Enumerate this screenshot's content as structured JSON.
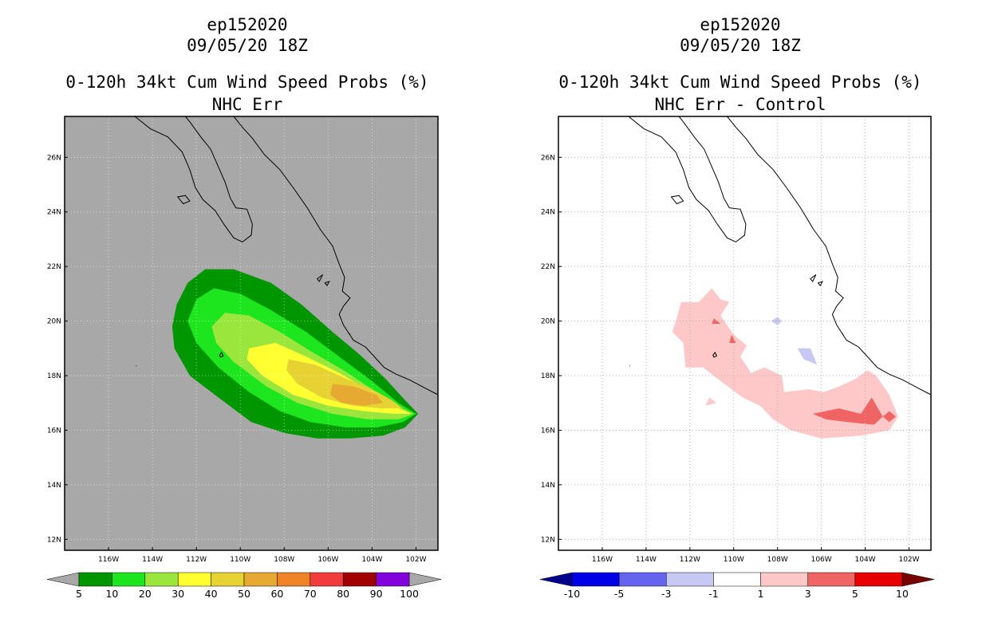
{
  "chart_data": [
    {
      "type": "heatmap",
      "storm_id": "ep152020",
      "datetime": "09/05/20 18Z",
      "title": "0-120h 34kt Cum Wind Speed Probs (%)",
      "subtitle": "NHC Err",
      "x_ticks": [
        "116W",
        "114W",
        "112W",
        "110W",
        "108W",
        "106W",
        "104W",
        "102W"
      ],
      "y_ticks": [
        "12N",
        "14N",
        "16N",
        "18N",
        "20N",
        "22N",
        "24N",
        "26N"
      ],
      "xlim_lon": [
        -118.0,
        -101.0
      ],
      "ylim_lat": [
        11.6,
        27.5
      ],
      "background": "#a8a8a8",
      "levels": [
        "5",
        "10",
        "20",
        "30",
        "40",
        "50",
        "60",
        "70",
        "80",
        "90",
        "100"
      ],
      "colors": [
        "#009600",
        "#1ee61e",
        "#9be63c",
        "#ffff32",
        "#e6d232",
        "#e6aa32",
        "#f08228",
        "#f03c3c",
        "#a00000",
        "#8200dc"
      ],
      "contours": [
        {
          "level": 5,
          "lonlat": [
            [
              -112.9,
              20.6
            ],
            [
              -112.4,
              21.4
            ],
            [
              -111.6,
              21.9
            ],
            [
              -110.3,
              21.9
            ],
            [
              -108.6,
              21.4
            ],
            [
              -107.2,
              20.6
            ],
            [
              -105.8,
              19.6
            ],
            [
              -104.6,
              18.8
            ],
            [
              -103.4,
              17.9
            ],
            [
              -102.5,
              17.1
            ],
            [
              -101.9,
              16.6
            ],
            [
              -102.5,
              16.1
            ],
            [
              -103.5,
              15.8
            ],
            [
              -105.0,
              15.7
            ],
            [
              -106.5,
              15.7
            ],
            [
              -108.0,
              15.9
            ],
            [
              -109.5,
              16.3
            ],
            [
              -111.0,
              17.2
            ],
            [
              -112.3,
              18.0
            ],
            [
              -113.0,
              19.0
            ],
            [
              -113.1,
              19.8
            ]
          ]
        },
        {
          "level": 10,
          "lonlat": [
            [
              -112.4,
              20.0
            ],
            [
              -112.0,
              20.8
            ],
            [
              -111.2,
              21.2
            ],
            [
              -110.0,
              21.0
            ],
            [
              -108.6,
              20.4
            ],
            [
              -107.0,
              19.6
            ],
            [
              -105.5,
              18.7
            ],
            [
              -104.0,
              17.8
            ],
            [
              -102.8,
              17.0
            ],
            [
              -102.0,
              16.6
            ],
            [
              -102.6,
              16.3
            ],
            [
              -103.8,
              16.1
            ],
            [
              -105.2,
              16.1
            ],
            [
              -106.8,
              16.3
            ],
            [
              -108.2,
              16.7
            ],
            [
              -109.6,
              17.4
            ],
            [
              -111.0,
              18.3
            ],
            [
              -112.0,
              19.2
            ]
          ]
        },
        {
          "level": 20,
          "lonlat": [
            [
              -111.3,
              19.8
            ],
            [
              -110.7,
              20.3
            ],
            [
              -109.6,
              20.2
            ],
            [
              -108.2,
              19.6
            ],
            [
              -106.8,
              18.9
            ],
            [
              -105.3,
              18.2
            ],
            [
              -103.8,
              17.4
            ],
            [
              -102.6,
              16.8
            ],
            [
              -102.1,
              16.6
            ],
            [
              -102.8,
              16.4
            ],
            [
              -104.2,
              16.4
            ],
            [
              -105.8,
              16.6
            ],
            [
              -107.4,
              17.0
            ],
            [
              -108.8,
              17.6
            ],
            [
              -110.3,
              18.5
            ],
            [
              -111.1,
              19.2
            ]
          ]
        },
        {
          "level": 30,
          "lonlat": [
            [
              -109.6,
              19.0
            ],
            [
              -108.4,
              19.2
            ],
            [
              -107.0,
              18.7
            ],
            [
              -105.5,
              18.1
            ],
            [
              -104.0,
              17.4
            ],
            [
              -102.8,
              16.8
            ],
            [
              -102.2,
              16.6
            ],
            [
              -103.0,
              16.6
            ],
            [
              -104.4,
              16.7
            ],
            [
              -106.0,
              16.9
            ],
            [
              -107.6,
              17.3
            ],
            [
              -109.0,
              18.0
            ],
            [
              -109.7,
              18.6
            ]
          ]
        },
        {
          "level": 40,
          "lonlat": [
            [
              -107.8,
              18.6
            ],
            [
              -106.6,
              18.4
            ],
            [
              -105.2,
              17.9
            ],
            [
              -104.0,
              17.5
            ],
            [
              -103.1,
              17.1
            ],
            [
              -102.6,
              16.8
            ],
            [
              -103.6,
              16.8
            ],
            [
              -104.9,
              16.9
            ],
            [
              -106.3,
              17.2
            ],
            [
              -107.4,
              17.7
            ],
            [
              -107.9,
              18.2
            ]
          ]
        },
        {
          "level": 50,
          "lonlat": [
            [
              -105.8,
              17.7
            ],
            [
              -104.8,
              17.6
            ],
            [
              -103.8,
              17.3
            ],
            [
              -103.5,
              17.0
            ],
            [
              -104.4,
              16.9
            ],
            [
              -105.4,
              17.0
            ],
            [
              -105.9,
              17.3
            ]
          ]
        }
      ]
    },
    {
      "type": "heatmap",
      "storm_id": "ep152020",
      "datetime": "09/05/20 18Z",
      "title": "0-120h 34kt Cum Wind Speed Probs (%)",
      "subtitle": "NHC Err - Control",
      "x_ticks": [
        "116W",
        "114W",
        "112W",
        "110W",
        "108W",
        "106W",
        "104W",
        "102W"
      ],
      "y_ticks": [
        "12N",
        "14N",
        "16N",
        "18N",
        "20N",
        "22N",
        "24N",
        "26N"
      ],
      "xlim_lon": [
        -118.0,
        -101.0
      ],
      "ylim_lat": [
        11.6,
        27.5
      ],
      "background": "#ffffff",
      "grid": true,
      "levels": [
        "-10",
        "-5",
        "-3",
        "-1",
        "1",
        "3",
        "5",
        "10"
      ],
      "colors": [
        "#00008c",
        "#0000e6",
        "#6464f0",
        "#c8c8f5",
        "#ffffff",
        "#ffc8c8",
        "#f06464",
        "#e60000",
        "#780000"
      ],
      "contours": [
        {
          "level": 1,
          "lonlat": [
            [
              -112.6,
              20.1
            ],
            [
              -112.4,
              20.7
            ],
            [
              -111.6,
              20.7
            ],
            [
              -111.0,
              21.2
            ],
            [
              -110.6,
              20.8
            ],
            [
              -110.2,
              20.7
            ],
            [
              -110.6,
              20.2
            ],
            [
              -110.0,
              19.5
            ],
            [
              -109.4,
              19.1
            ],
            [
              -109.7,
              18.7
            ],
            [
              -109.2,
              18.1
            ],
            [
              -108.6,
              18.3
            ],
            [
              -107.8,
              18.0
            ],
            [
              -107.7,
              17.4
            ],
            [
              -106.6,
              17.5
            ],
            [
              -105.9,
              17.4
            ],
            [
              -105.2,
              17.6
            ],
            [
              -104.4,
              17.9
            ],
            [
              -103.9,
              18.2
            ],
            [
              -103.5,
              18.0
            ],
            [
              -102.9,
              17.3
            ],
            [
              -102.5,
              16.5
            ],
            [
              -102.9,
              16.0
            ],
            [
              -104.2,
              15.8
            ],
            [
              -106.0,
              15.7
            ],
            [
              -107.4,
              16.0
            ],
            [
              -108.2,
              16.4
            ],
            [
              -108.8,
              16.9
            ],
            [
              -109.6,
              17.2
            ],
            [
              -110.6,
              17.8
            ],
            [
              -111.4,
              18.3
            ],
            [
              -112.2,
              18.3
            ],
            [
              -112.3,
              19.2
            ],
            [
              -112.8,
              19.6
            ]
          ]
        },
        {
          "level": 1,
          "lonlat": [
            [
              -111.3,
              16.9
            ],
            [
              -110.8,
              17.0
            ],
            [
              -111.1,
              17.2
            ]
          ]
        },
        {
          "level": 3,
          "lonlat": [
            [
              -111.0,
              19.9
            ],
            [
              -110.6,
              19.9
            ],
            [
              -110.9,
              20.1
            ]
          ]
        },
        {
          "level": 3,
          "lonlat": [
            [
              -110.1,
              19.5
            ],
            [
              -109.9,
              19.2
            ],
            [
              -110.2,
              19.2
            ]
          ]
        },
        {
          "level": 3,
          "lonlat": [
            [
              -106.4,
              16.6
            ],
            [
              -105.2,
              16.8
            ],
            [
              -104.2,
              16.6
            ],
            [
              -103.7,
              17.2
            ],
            [
              -103.2,
              16.5
            ],
            [
              -103.6,
              16.2
            ],
            [
              -104.8,
              16.3
            ],
            [
              -105.8,
              16.4
            ]
          ]
        },
        {
          "level": 3,
          "lonlat": [
            [
              -102.9,
              16.7
            ],
            [
              -102.6,
              16.5
            ],
            [
              -102.9,
              16.3
            ],
            [
              -103.2,
              16.5
            ]
          ]
        },
        {
          "level": -1,
          "lonlat": [
            [
              -108.3,
              20.0
            ],
            [
              -108.0,
              20.15
            ],
            [
              -107.8,
              20.0
            ],
            [
              -108.0,
              19.85
            ]
          ]
        },
        {
          "level": -1,
          "lonlat": [
            [
              -107.1,
              19.0
            ],
            [
              -106.5,
              19.0
            ],
            [
              -106.2,
              18.4
            ],
            [
              -106.8,
              18.6
            ]
          ]
        }
      ]
    }
  ]
}
